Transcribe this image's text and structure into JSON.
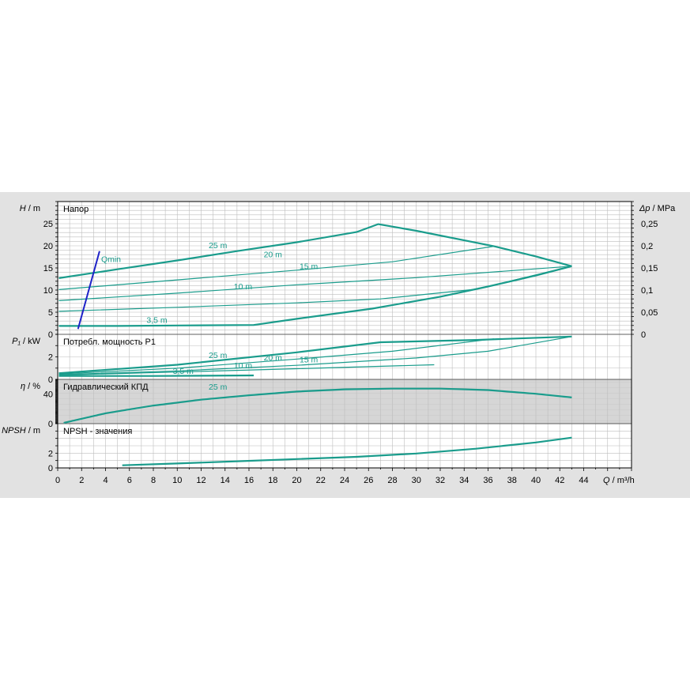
{
  "colors": {
    "curve": "#1a9c8c",
    "qmin": "#1e22c8",
    "grid": "#bdbdbd",
    "plot_bg": "#ffffff",
    "panel_bg": "#e2e2e2"
  },
  "chart_data": {
    "type": "line",
    "x_axis": {
      "label_var": "Q",
      "label_unit": "/ m³/h",
      "ticks": [
        "0",
        "2",
        "4",
        "6",
        "8",
        "10",
        "12",
        "14",
        "16",
        "18",
        "20",
        "22",
        "24",
        "26",
        "28",
        "30",
        "32",
        "34",
        "36",
        "38",
        "40",
        "42",
        "44"
      ],
      "range": [
        0,
        48
      ]
    },
    "panels": [
      {
        "id": "head",
        "title": "Напор",
        "y_label_var": "H",
        "y_label_unit": "/ m",
        "y_range": [
          0,
          30
        ],
        "y_ticks": [
          0,
          5,
          10,
          15,
          20,
          25
        ],
        "right_axis": {
          "label_var": "Δp",
          "label_unit": "/ MPa",
          "ticks": [
            "0",
            "0,05",
            "0,1",
            "0,15",
            "0,2",
            "0,25"
          ]
        },
        "series": [
          {
            "name": "25 m",
            "width": 2.2,
            "label_at": [
              13.4,
              19.5
            ],
            "points": [
              [
                0.1,
                12.7
              ],
              [
                5,
                14.7
              ],
              [
                10,
                16.7
              ],
              [
                15,
                18.8
              ],
              [
                20,
                20.8
              ],
              [
                25,
                23.1
              ],
              [
                26.8,
                24.9
              ],
              [
                30,
                23.4
              ],
              [
                36.5,
                19.9
              ],
              [
                40,
                17.6
              ],
              [
                43,
                15.4
              ]
            ]
          },
          {
            "name": "20 m",
            "width": 1.2,
            "label_at": [
              18,
              17.4
            ],
            "points": [
              [
                0.1,
                10.1
              ],
              [
                10,
                12.3
              ],
              [
                20,
                14.5
              ],
              [
                28,
                16.4
              ],
              [
                36.5,
                19.9
              ]
            ]
          },
          {
            "name": "15 m",
            "width": 1.2,
            "label_at": [
              21,
              14.7
            ],
            "points": [
              [
                0.1,
                7.6
              ],
              [
                10,
                9.3
              ],
              [
                20,
                11.2
              ],
              [
                30,
                12.8
              ],
              [
                43,
                15.4
              ]
            ]
          },
          {
            "name": "10 m",
            "width": 1.2,
            "label_at": [
              15.5,
              10.2
            ],
            "points": [
              [
                0.1,
                5.2
              ],
              [
                10,
                6.1
              ],
              [
                20,
                7.1
              ],
              [
                27,
                8.0
              ],
              [
                35,
                10.2
              ],
              [
                43,
                15.4
              ]
            ]
          },
          {
            "name": "3,5 m",
            "width": 2.2,
            "label_at": [
              8.3,
              2.6
            ],
            "points": [
              [
                0.1,
                1.9
              ],
              [
                5,
                1.9
              ],
              [
                10,
                2.0
              ],
              [
                16.4,
                2.1
              ],
              [
                20,
                3.5
              ],
              [
                26.3,
                5.8
              ],
              [
                32,
                8.5
              ],
              [
                36,
                10.8
              ],
              [
                40,
                13.3
              ],
              [
                43,
                15.4
              ]
            ]
          }
        ],
        "qmin": {
          "label": "Qmin",
          "points": [
            [
              1.7,
              1.2
            ],
            [
              3.5,
              18.8
            ]
          ]
        }
      },
      {
        "id": "power",
        "title": "Потребл. мощность P1",
        "y_label_var": "P₁",
        "y_label_unit": "/ kW",
        "y_range": [
          0,
          4
        ],
        "y_ticks": [
          0,
          2
        ],
        "series": [
          {
            "name": "25 m",
            "width": 2.2,
            "label_at": [
              13.4,
              1.9
            ],
            "points": [
              [
                0.1,
                0.55
              ],
              [
                10,
                1.3
              ],
              [
                20,
                2.4
              ],
              [
                27,
                3.3
              ],
              [
                35,
                3.5
              ],
              [
                43,
                3.8
              ]
            ]
          },
          {
            "name": "20 m",
            "width": 1.2,
            "label_at": [
              18,
              1.7
            ],
            "points": [
              [
                0.1,
                0.48
              ],
              [
                10,
                1.0
              ],
              [
                20,
                1.8
              ],
              [
                28,
                2.5
              ],
              [
                36.5,
                3.6
              ]
            ]
          },
          {
            "name": "15 m",
            "width": 1.2,
            "label_at": [
              21,
              1.5
            ],
            "points": [
              [
                0.1,
                0.42
              ],
              [
                10,
                0.75
              ],
              [
                20,
                1.25
              ],
              [
                30,
                1.9
              ],
              [
                36,
                2.5
              ],
              [
                43,
                3.8
              ]
            ]
          },
          {
            "name": "10 m",
            "width": 1.2,
            "label_at": [
              15.5,
              1.0
            ],
            "points": [
              [
                0.1,
                0.38
              ],
              [
                10,
                0.65
              ],
              [
                20,
                0.95
              ],
              [
                31.5,
                1.3
              ]
            ]
          },
          {
            "name": "3,5 m",
            "width": 2.2,
            "label_at": [
              10.5,
              0.5
            ],
            "points": [
              [
                0.1,
                0.3
              ],
              [
                8,
                0.3
              ],
              [
                16.4,
                0.35
              ]
            ]
          }
        ]
      },
      {
        "id": "efficiency",
        "title": "Гидравлический КПД",
        "y_label_var": "η",
        "y_label_unit": "/ %",
        "y_range": [
          0,
          60
        ],
        "y_ticks": [
          0,
          40
        ],
        "series": [
          {
            "name": "25 m",
            "width": 2.2,
            "label_at": [
              13.4,
              46
            ],
            "points": [
              [
                0.5,
                1
              ],
              [
                4,
                14
              ],
              [
                8,
                24.5
              ],
              [
                12,
                32.5
              ],
              [
                16,
                38.5
              ],
              [
                20,
                43.5
              ],
              [
                24,
                46.5
              ],
              [
                28,
                47.5
              ],
              [
                32,
                47.5
              ],
              [
                36,
                45.5
              ],
              [
                40,
                40.5
              ],
              [
                43,
                35.5
              ]
            ]
          }
        ]
      },
      {
        "id": "npsh",
        "title": "NPSH - значения",
        "y_label_var": "NPSH",
        "y_label_unit": "/ m",
        "y_range": [
          0,
          6
        ],
        "y_ticks": [
          0,
          2
        ],
        "series": [
          {
            "name": "",
            "width": 2.2,
            "points": [
              [
                5.4,
                0.35
              ],
              [
                10,
                0.6
              ],
              [
                15,
                0.9
              ],
              [
                20,
                1.2
              ],
              [
                25,
                1.5
              ],
              [
                30,
                1.95
              ],
              [
                35,
                2.6
              ],
              [
                40,
                3.45
              ],
              [
                43,
                4.1
              ]
            ]
          }
        ]
      }
    ]
  }
}
